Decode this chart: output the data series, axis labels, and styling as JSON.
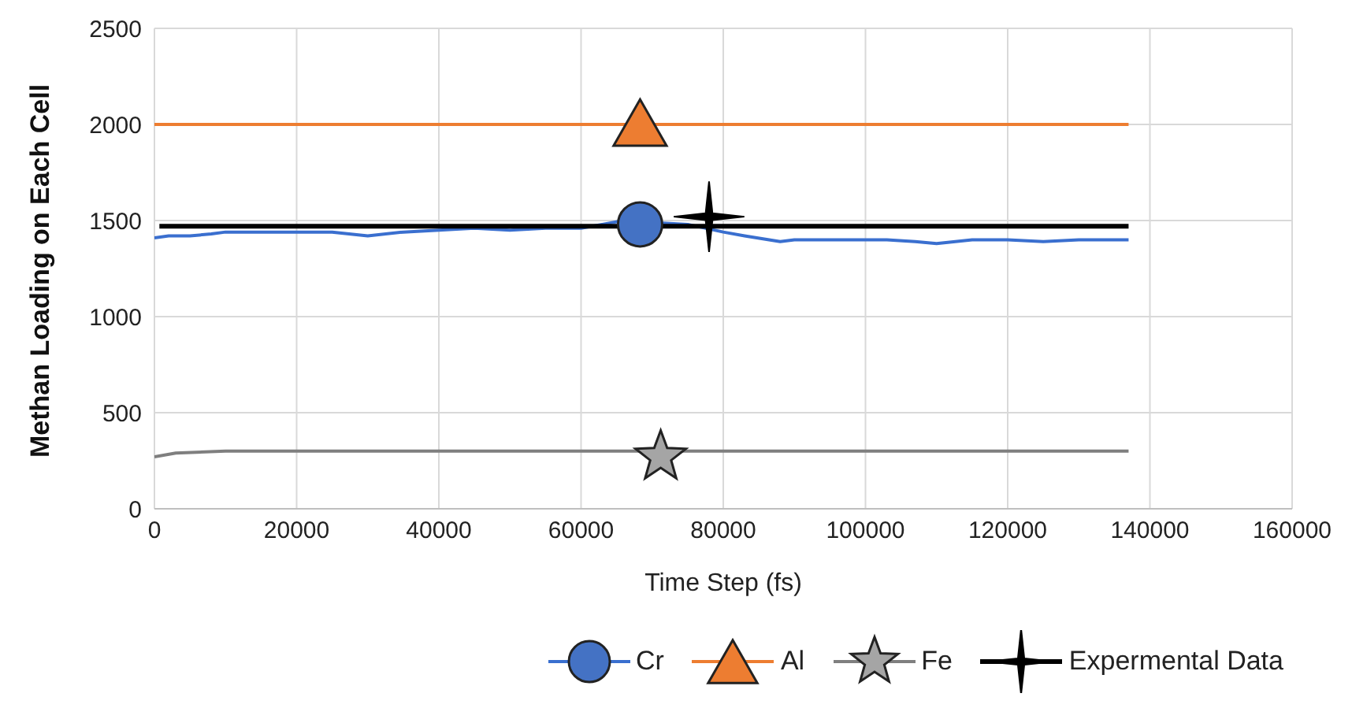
{
  "chart_data": {
    "type": "line",
    "xlabel": "Time Step (fs)",
    "ylabel": "Methan Loading on Each Cell",
    "xlim": [
      0,
      160000
    ],
    "xticks": [
      0,
      20000,
      40000,
      60000,
      80000,
      100000,
      120000,
      140000,
      160000
    ],
    "ylim": [
      0,
      2500
    ],
    "yticks": [
      0,
      500,
      1000,
      1500,
      2000,
      2500
    ],
    "grid": true,
    "legend": "bottom",
    "marker": "none",
    "line_style": "solid",
    "series": [
      {
        "name": "Cr",
        "color": "#3a6fcf",
        "x": [
          0,
          2000,
          5000,
          8000,
          10000,
          15000,
          20000,
          25000,
          30000,
          35000,
          40000,
          45000,
          50000,
          55000,
          60000,
          63000,
          66000,
          70000,
          75000,
          80000,
          83000,
          88000,
          90000,
          95000,
          100000,
          103000,
          107000,
          110000,
          115000,
          120000,
          125000,
          130000,
          137000
        ],
        "values": [
          1410,
          1420,
          1420,
          1430,
          1440,
          1440,
          1440,
          1440,
          1420,
          1440,
          1450,
          1460,
          1450,
          1460,
          1460,
          1480,
          1500,
          1490,
          1480,
          1440,
          1420,
          1390,
          1400,
          1400,
          1400,
          1400,
          1390,
          1380,
          1400,
          1400,
          1390,
          1400,
          1400
        ]
      },
      {
        "name": "Al",
        "color": "#ed7d31",
        "x": [
          0,
          137000
        ],
        "values": [
          2000,
          2000
        ]
      },
      {
        "name": "Fe",
        "color": "#7f7f7f",
        "x": [
          0,
          3000,
          10000,
          137000
        ],
        "values": [
          270,
          290,
          300,
          300
        ]
      },
      {
        "name": "Expermental Data",
        "color": "#000000",
        "x": [
          700,
          137000
        ],
        "values": [
          1470,
          1470
        ]
      },
      {
        "type": "scatter",
        "marker": "circle",
        "color": "#4472c4",
        "x": [
          68300
        ],
        "values": [
          1480
        ]
      },
      {
        "type": "scatter",
        "marker": "triangle",
        "color": "#ed7d31",
        "x": [
          68300
        ],
        "values": [
          2010
        ]
      },
      {
        "type": "scatter",
        "marker": "star",
        "color": "#a5a5a5",
        "x": [
          71200
        ],
        "values": [
          270
        ]
      },
      {
        "type": "scatter",
        "marker": "cross",
        "color": "#000000",
        "x": [
          78000
        ],
        "values": [
          1520
        ]
      }
    ]
  }
}
